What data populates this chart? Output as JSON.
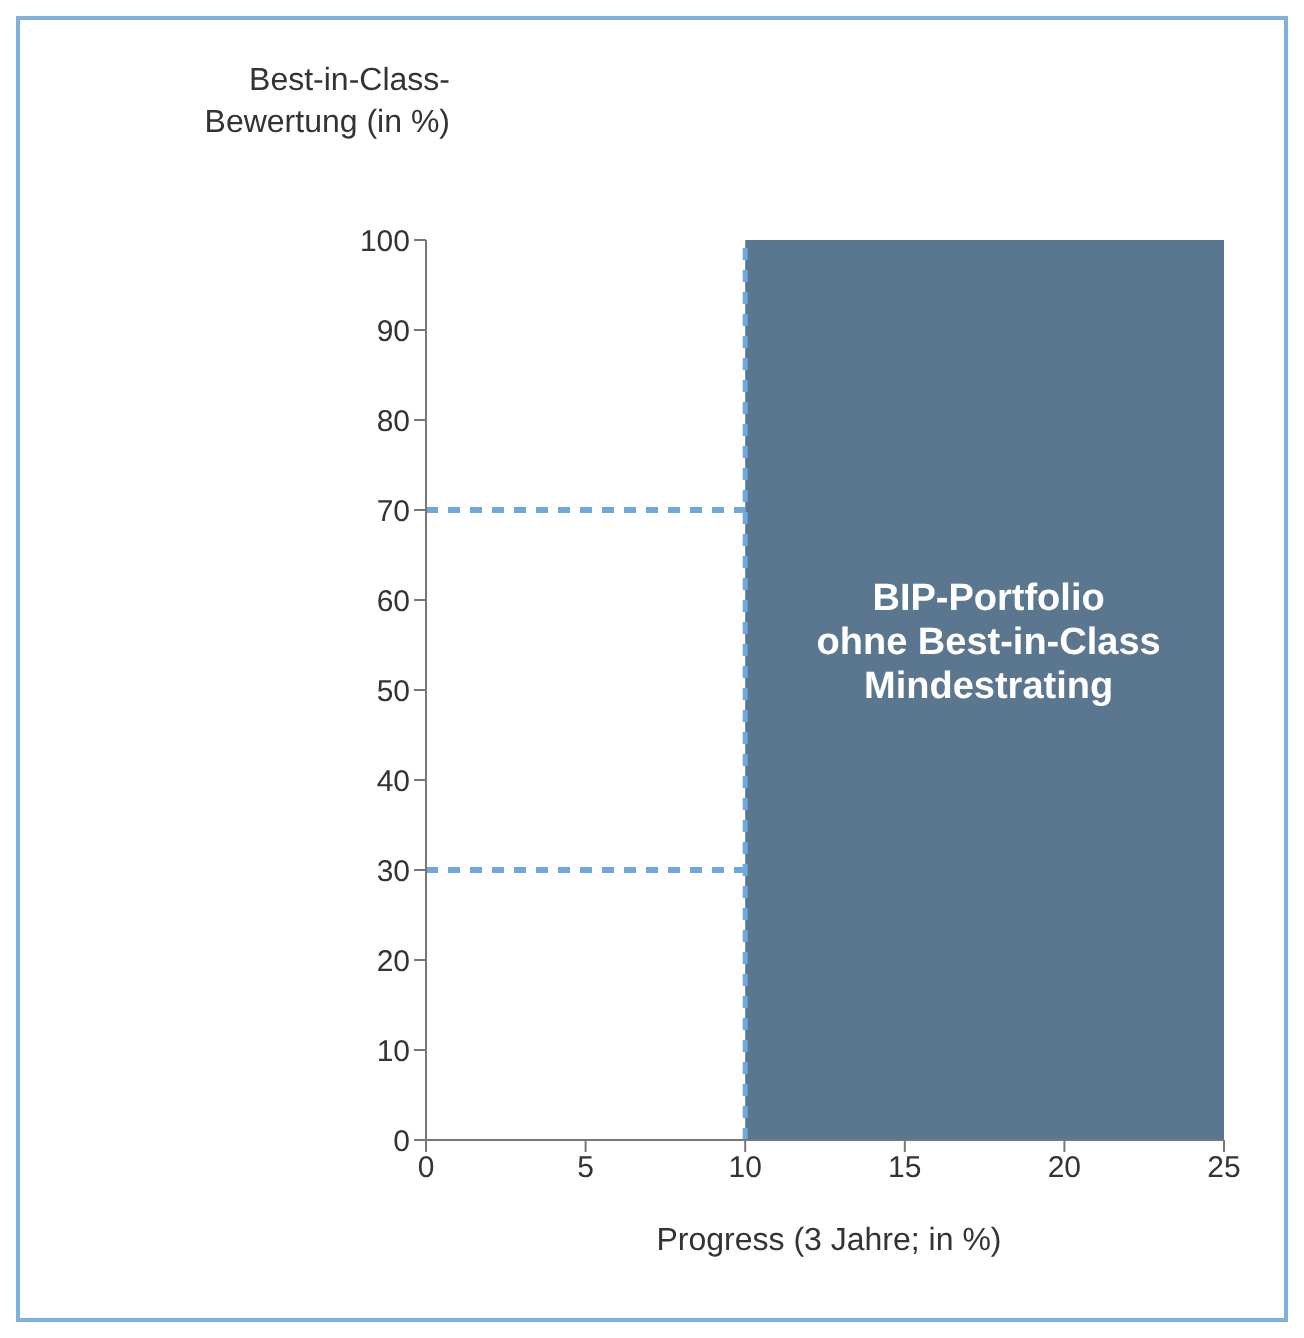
{
  "chart_data": {
    "type": "area",
    "xlabel": "Progress (3 Jahre; in %)",
    "ylabel": "Best-in-Class-\nBewertung (in %)",
    "xlim": [
      0,
      25
    ],
    "xticks": [
      0,
      5,
      10,
      15,
      20,
      25
    ],
    "ylim": [
      0,
      100
    ],
    "yticks": [
      0,
      10,
      20,
      30,
      40,
      50,
      60,
      70,
      80,
      90,
      100
    ],
    "x": [
      10,
      25
    ],
    "series": [
      {
        "color": "#5b768f",
        "values": [
          100,
          100
        ]
      }
    ],
    "annotations": [
      "BIP-Portfolio\nohne Best-in-Class\nMindestrating"
    ],
    "ref_lines": [
      {
        "axis": "y",
        "value": 70,
        "color": "#6fa8dc",
        "line_style": "dashed"
      },
      {
        "axis": "y",
        "value": 30,
        "color": "#6fa8dc",
        "line_style": "dashed"
      },
      {
        "axis": "x",
        "value": 10,
        "color": "#6fa8dc",
        "line_style": "dashed"
      }
    ]
  }
}
